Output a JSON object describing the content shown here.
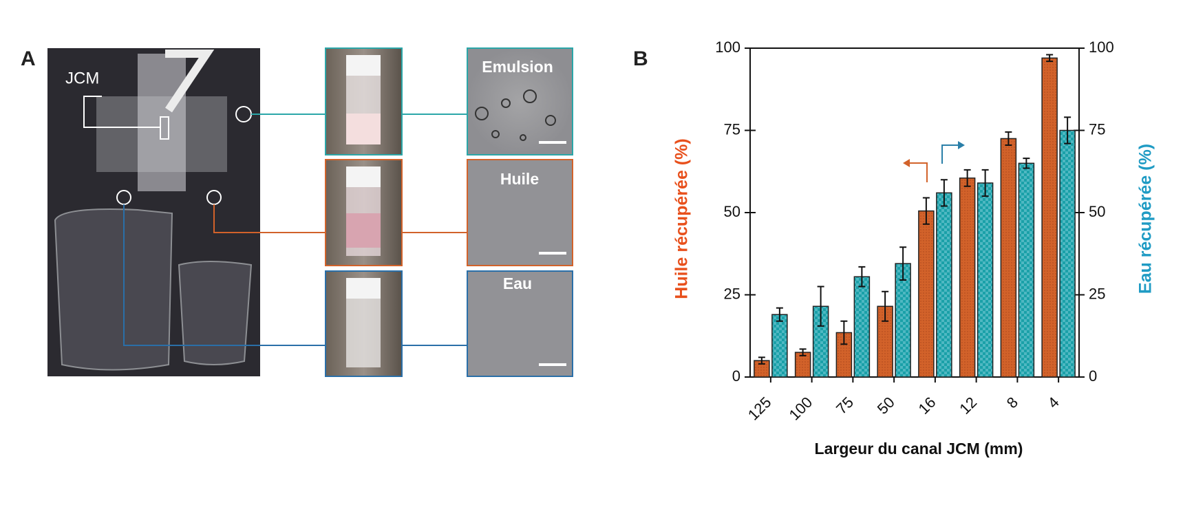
{
  "panel_a": {
    "label": "A",
    "annotation": "JCM",
    "images": [
      "Emulsion",
      "Huile",
      "Eau"
    ]
  },
  "chart_data": {
    "type": "bar",
    "label": "B",
    "categories": [
      "125",
      "100",
      "75",
      "50",
      "16",
      "12",
      "8",
      "4"
    ],
    "xlabel": "Largeur du canal JCM (mm)",
    "ylabel": "Huile récupérée (%)",
    "y2label": "Eau récupérée (%)",
    "series": [
      {
        "color": "#d2622a",
        "values": [
          5,
          7.5,
          13.5,
          21.5,
          50.5,
          60.5,
          72.5,
          97
        ],
        "errors": [
          1,
          1,
          3.5,
          4.5,
          4,
          2.5,
          2,
          1
        ]
      },
      {
        "color": "#1aa0a8",
        "axis": "y2",
        "values": [
          19,
          21.5,
          30.5,
          34.5,
          56,
          59,
          65,
          75
        ],
        "errors": [
          2,
          6,
          3,
          5,
          4,
          4,
          1.5,
          4
        ]
      }
    ],
    "ylim": [
      0,
      100
    ],
    "yticks": [
      0,
      25,
      50,
      75,
      100
    ],
    "y2lim": [
      0,
      100
    ],
    "y2ticks": [
      0,
      25,
      50,
      75,
      100
    ]
  }
}
